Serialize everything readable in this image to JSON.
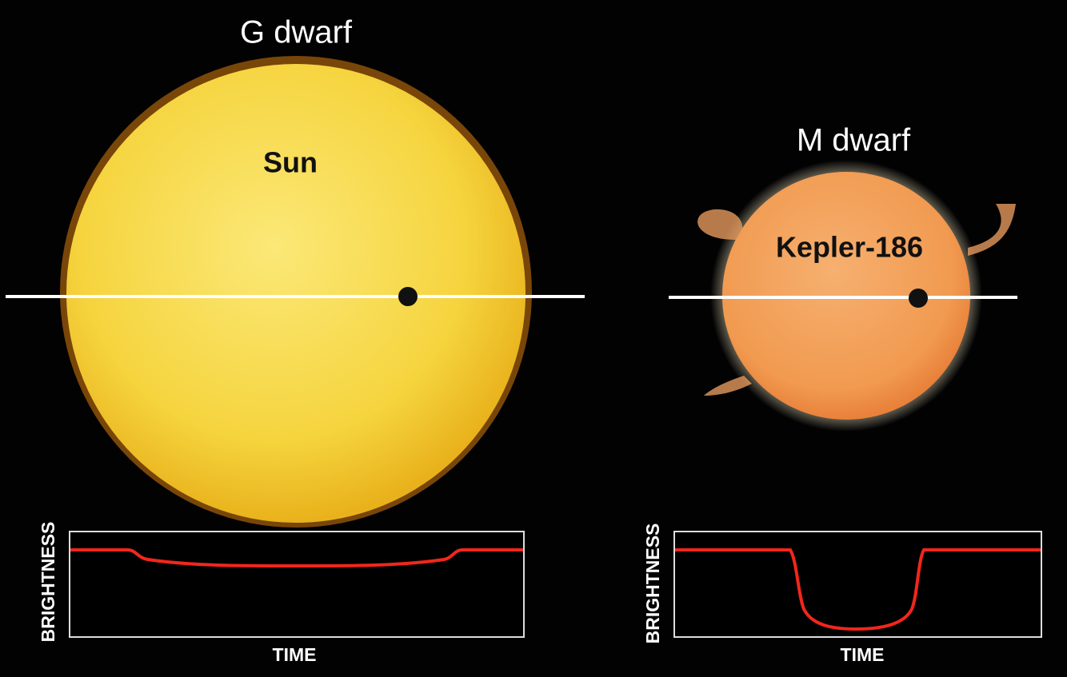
{
  "panels": [
    {
      "title": "G dwarf",
      "star_label": "Sun",
      "y_axis_label": "BRIGHTNESS",
      "x_axis_label": "TIME"
    },
    {
      "title": "M dwarf",
      "star_label": "Kepler-186",
      "y_axis_label": "BRIGHTNESS",
      "x_axis_label": "TIME"
    }
  ]
}
